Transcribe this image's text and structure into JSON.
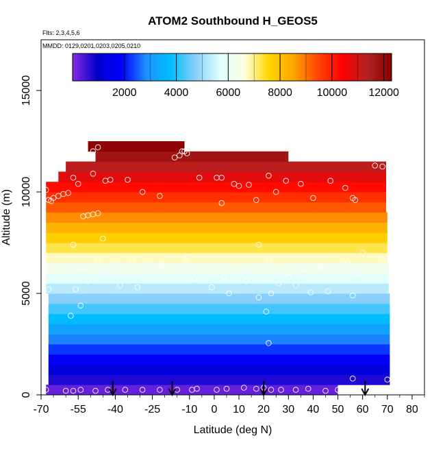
{
  "chart_data": {
    "type": "heatmap",
    "title": "ATOM2 Southbound H_GEOS5",
    "subtitle_flights": "Flts: 2,3,4,5,6",
    "subtitle_dates": "MMDD: 0129,0201,0203,0205,0210",
    "xlabel": "Latitude (deg N)",
    "ylabel": "Altitude (m)",
    "xlim": [
      -70,
      85
    ],
    "ylim": [
      0,
      17500
    ],
    "x_ticks": [
      -70,
      -55,
      -40,
      -25,
      -10,
      0,
      10,
      20,
      30,
      40,
      50,
      60,
      70,
      80
    ],
    "x_tick_labels": [
      "-70",
      "-55",
      "-40",
      "-25",
      "-10",
      "0",
      "10",
      "20",
      "30",
      "40",
      "50",
      "60",
      "70",
      "80"
    ],
    "y_ticks": [
      0,
      5000,
      10000,
      15000
    ],
    "y_tick_labels": [
      "0",
      "5000",
      "10000",
      "15000"
    ],
    "colorbar": {
      "range": [
        0,
        12300
      ],
      "ticks": [
        2000,
        4000,
        6000,
        8000,
        10000,
        12000
      ],
      "tick_labels": [
        "2000",
        "4000",
        "6000",
        "8000",
        "10000",
        "12000"
      ],
      "colors": [
        "#8a2be2",
        "#0000cd",
        "#0000ff",
        "#1e90ff",
        "#00bfff",
        "#87cefa",
        "#e0ffff",
        "#ffffe0",
        "#ffd700",
        "#ffa500",
        "#ff4500",
        "#ff0000",
        "#b22222",
        "#8b0000"
      ]
    },
    "layers": [
      {
        "alt_min": 0,
        "alt_max": 500,
        "lat_min": -68,
        "lat_max": 50
      },
      {
        "alt_min": 500,
        "alt_max": 1000,
        "lat_min": -67,
        "lat_max": 71
      },
      {
        "alt_min": 1000,
        "alt_max": 1500,
        "lat_min": -67,
        "lat_max": 71
      },
      {
        "alt_min": 1500,
        "alt_max": 2000,
        "lat_min": -67,
        "lat_max": 71
      },
      {
        "alt_min": 2000,
        "alt_max": 2500,
        "lat_min": -67,
        "lat_max": 71
      },
      {
        "alt_min": 2500,
        "alt_max": 3000,
        "lat_min": -67,
        "lat_max": 71
      },
      {
        "alt_min": 3000,
        "alt_max": 3500,
        "lat_min": -67,
        "lat_max": 71
      },
      {
        "alt_min": 3500,
        "alt_max": 4000,
        "lat_min": -67,
        "lat_max": 71
      },
      {
        "alt_min": 4000,
        "alt_max": 4500,
        "lat_min": -67,
        "lat_max": 71
      },
      {
        "alt_min": 4500,
        "alt_max": 5000,
        "lat_min": -67,
        "lat_max": 71
      },
      {
        "alt_min": 5000,
        "alt_max": 5500,
        "lat_min": -68,
        "lat_max": 70.5
      },
      {
        "alt_min": 5500,
        "alt_max": 6000,
        "lat_min": -68,
        "lat_max": 70.5
      },
      {
        "alt_min": 6000,
        "alt_max": 6500,
        "lat_min": -68,
        "lat_max": 70.5
      },
      {
        "alt_min": 6500,
        "alt_max": 7000,
        "lat_min": -68,
        "lat_max": 70
      },
      {
        "alt_min": 7000,
        "alt_max": 7500,
        "lat_min": -68,
        "lat_max": 70
      },
      {
        "alt_min": 7500,
        "alt_max": 8000,
        "lat_min": -68,
        "lat_max": 70
      },
      {
        "alt_min": 8000,
        "alt_max": 8500,
        "lat_min": -68,
        "lat_max": 70
      },
      {
        "alt_min": 8500,
        "alt_max": 9000,
        "lat_min": -68,
        "lat_max": 70
      },
      {
        "alt_min": 9000,
        "alt_max": 9500,
        "lat_min": -68,
        "lat_max": 69.5
      },
      {
        "alt_min": 9500,
        "alt_max": 10000,
        "lat_min": -68,
        "lat_max": 69.5
      },
      {
        "alt_min": 10000,
        "alt_max": 10500,
        "lat_min": -68,
        "lat_max": 69.5
      },
      {
        "alt_min": 10500,
        "alt_max": 11000,
        "lat_min": -63,
        "lat_max": 69.5
      },
      {
        "alt_min": 11000,
        "alt_max": 11500,
        "lat_min": -60,
        "lat_max": 69.5
      },
      {
        "alt_min": 11500,
        "alt_max": 12000,
        "lat_min": -48,
        "lat_max": 30
      },
      {
        "alt_min": 12000,
        "alt_max": 12500,
        "lat_min": -51,
        "lat_max": -12
      }
    ],
    "observations": [
      {
        "lat": -68,
        "alt": 10100
      },
      {
        "lat": -67,
        "alt": 9600
      },
      {
        "lat": -66,
        "alt": 9550
      },
      {
        "lat": -65,
        "alt": 9700
      },
      {
        "lat": -63,
        "alt": 9800
      },
      {
        "lat": -61,
        "alt": 9900
      },
      {
        "lat": -59,
        "alt": 9950
      },
      {
        "lat": -57,
        "alt": 10700
      },
      {
        "lat": -55,
        "alt": 10400
      },
      {
        "lat": -53,
        "alt": 8800
      },
      {
        "lat": -51,
        "alt": 8850
      },
      {
        "lat": -49,
        "alt": 8900
      },
      {
        "lat": -47,
        "alt": 8950
      },
      {
        "lat": -45,
        "alt": 7700
      },
      {
        "lat": -51,
        "alt": 11800
      },
      {
        "lat": -49,
        "alt": 12000
      },
      {
        "lat": -47,
        "alt": 12200
      },
      {
        "lat": -49,
        "alt": 10900
      },
      {
        "lat": -44,
        "alt": 10550
      },
      {
        "lat": -42,
        "alt": 10600
      },
      {
        "lat": -35,
        "alt": 10600
      },
      {
        "lat": -29,
        "alt": 10000
      },
      {
        "lat": -22,
        "alt": 9800
      },
      {
        "lat": -16,
        "alt": 11700
      },
      {
        "lat": -14,
        "alt": 11800
      },
      {
        "lat": -13,
        "alt": 12000
      },
      {
        "lat": -12,
        "alt": 12000
      },
      {
        "lat": -11,
        "alt": 11900
      },
      {
        "lat": -6,
        "alt": 10700
      },
      {
        "lat": 1,
        "alt": 10700
      },
      {
        "lat": 3,
        "alt": 10700
      },
      {
        "lat": 3,
        "alt": 9450
      },
      {
        "lat": 8,
        "alt": 10400
      },
      {
        "lat": 10,
        "alt": 10300
      },
      {
        "lat": 14,
        "alt": 10350
      },
      {
        "lat": 17,
        "alt": 9600
      },
      {
        "lat": 22,
        "alt": 10800
      },
      {
        "lat": 25,
        "alt": 10000
      },
      {
        "lat": 29,
        "alt": 10550
      },
      {
        "lat": 35,
        "alt": 10400
      },
      {
        "lat": 40,
        "alt": 9700
      },
      {
        "lat": 47,
        "alt": 10550
      },
      {
        "lat": 53,
        "alt": 10200
      },
      {
        "lat": 56,
        "alt": 9700
      },
      {
        "lat": 57,
        "alt": 9600
      },
      {
        "lat": 65,
        "alt": 11300
      },
      {
        "lat": 68,
        "alt": 11250
      },
      {
        "lat": -68,
        "alt": 5600
      },
      {
        "lat": -67,
        "alt": 5200
      },
      {
        "lat": -57,
        "alt": 7400
      },
      {
        "lat": -55,
        "alt": 6200
      },
      {
        "lat": -56,
        "alt": 5200
      },
      {
        "lat": -54,
        "alt": 4400
      },
      {
        "lat": -58,
        "alt": 3900
      },
      {
        "lat": -53,
        "alt": 6250
      },
      {
        "lat": -51,
        "alt": 5600
      },
      {
        "lat": -47,
        "alt": 6600
      },
      {
        "lat": -45,
        "alt": 6000
      },
      {
        "lat": -40,
        "alt": 6500
      },
      {
        "lat": -38,
        "alt": 5400
      },
      {
        "lat": -33,
        "alt": 6600
      },
      {
        "lat": -31,
        "alt": 5300
      },
      {
        "lat": -27,
        "alt": 6400
      },
      {
        "lat": -21,
        "alt": 6400
      },
      {
        "lat": -11,
        "alt": 6800
      },
      {
        "lat": -11,
        "alt": 6400
      },
      {
        "lat": -8,
        "alt": 5700
      },
      {
        "lat": -1,
        "alt": 5300
      },
      {
        "lat": 4,
        "alt": 5800
      },
      {
        "lat": 6,
        "alt": 5000
      },
      {
        "lat": 11,
        "alt": 6000
      },
      {
        "lat": 13,
        "alt": 5600
      },
      {
        "lat": 18,
        "alt": 4800
      },
      {
        "lat": 18,
        "alt": 7400
      },
      {
        "lat": 22,
        "alt": 6600
      },
      {
        "lat": 21,
        "alt": 4100
      },
      {
        "lat": 23,
        "alt": 5000
      },
      {
        "lat": 25,
        "alt": 5900
      },
      {
        "lat": 26,
        "alt": 5500
      },
      {
        "lat": 30,
        "alt": 5800
      },
      {
        "lat": 33,
        "alt": 5400
      },
      {
        "lat": 36,
        "alt": 6200
      },
      {
        "lat": 39,
        "alt": 5050
      },
      {
        "lat": 43,
        "alt": 6250
      },
      {
        "lat": 46,
        "alt": 5100
      },
      {
        "lat": 51,
        "alt": 6400
      },
      {
        "lat": 54,
        "alt": 6500
      },
      {
        "lat": 56,
        "alt": 4900
      },
      {
        "lat": 58,
        "alt": 6000
      },
      {
        "lat": 60,
        "alt": 7000
      },
      {
        "lat": 68,
        "alt": 6700
      },
      {
        "lat": 22,
        "alt": 2550
      },
      {
        "lat": -68,
        "alt": 250
      },
      {
        "lat": -60,
        "alt": 200
      },
      {
        "lat": -57,
        "alt": 200
      },
      {
        "lat": -54,
        "alt": 250
      },
      {
        "lat": -48,
        "alt": 200
      },
      {
        "lat": -43,
        "alt": 250
      },
      {
        "lat": -36,
        "alt": 250
      },
      {
        "lat": -29,
        "alt": 250
      },
      {
        "lat": -22,
        "alt": 250
      },
      {
        "lat": -15,
        "alt": 250
      },
      {
        "lat": -9,
        "alt": 250
      },
      {
        "lat": -7,
        "alt": 300
      },
      {
        "lat": 1,
        "alt": 250
      },
      {
        "lat": 5,
        "alt": 300
      },
      {
        "lat": 12,
        "alt": 350
      },
      {
        "lat": 17,
        "alt": 300
      },
      {
        "lat": 20,
        "alt": 350
      },
      {
        "lat": 23,
        "alt": 250
      },
      {
        "lat": 27,
        "alt": 250
      },
      {
        "lat": 33,
        "alt": 250
      },
      {
        "lat": 38,
        "alt": 300
      },
      {
        "lat": 45,
        "alt": 200
      },
      {
        "lat": 50,
        "alt": 250
      },
      {
        "lat": 56,
        "alt": 800
      },
      {
        "lat": 70,
        "alt": 750
      }
    ],
    "arrows": [
      -41,
      -17,
      20,
      61
    ]
  }
}
